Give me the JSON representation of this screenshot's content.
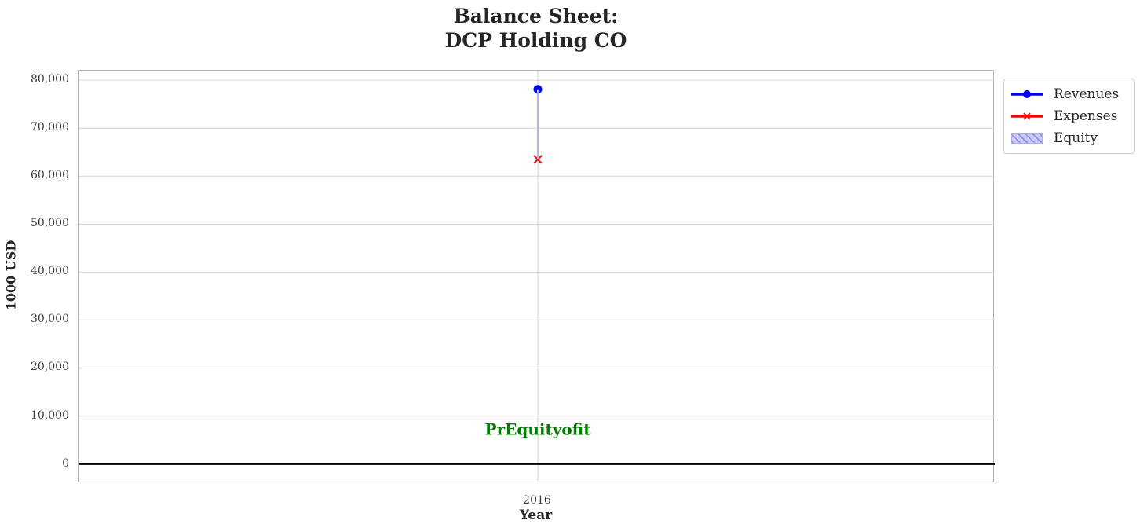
{
  "title": {
    "line1": "Balance Sheet:",
    "line2": "DCP Holding CO"
  },
  "axes": {
    "xlabel": "Year",
    "ylabel": "1000 USD",
    "xtick_labels": [
      "2016"
    ],
    "ytick_labels": [
      "0",
      "10,000",
      "20,000",
      "30,000",
      "40,000",
      "50,000",
      "60,000",
      "70,000",
      "80,000"
    ]
  },
  "legend": {
    "items": [
      {
        "label": "Revenues",
        "swatch": "line",
        "marker": "circle",
        "color": "#0000ff"
      },
      {
        "label": "Expenses",
        "swatch": "line",
        "marker": "x",
        "color": "#ff0000"
      },
      {
        "label": "Equity",
        "swatch": "patch",
        "color": "#ccccff",
        "hatch_color": "#8f8fe8",
        "edge_color": "#b0b0e8"
      }
    ]
  },
  "annotation": {
    "text": "PrEquityofit",
    "color": "#008000"
  },
  "colors": {
    "grid": "#dcdcdc",
    "spine": "#b2b2b2",
    "zero_line": "#000000",
    "revenues": "#0000ff",
    "expenses": "#ff0000",
    "equity_fill": "#b3b3e0",
    "annotation": "#008000",
    "text": "#262626"
  },
  "chart_data": {
    "type": "line",
    "title": "Balance Sheet:\nDCP Holding CO",
    "xlabel": "Year",
    "ylabel": "1000 USD",
    "x": [
      2016
    ],
    "series": [
      {
        "name": "Revenues",
        "type": "line",
        "marker": "circle",
        "color": "#0000ff",
        "values": [
          78100
        ]
      },
      {
        "name": "Expenses",
        "type": "line",
        "marker": "x",
        "color": "#ff0000",
        "values": [
          63500
        ]
      },
      {
        "name": "Equity",
        "type": "bar",
        "hatch": "//",
        "color": "#ccccff",
        "values": [
          14600
        ],
        "bar_base": 63500
      }
    ],
    "yticks": [
      0,
      10000,
      20000,
      30000,
      40000,
      50000,
      60000,
      70000,
      80000
    ],
    "ylim": [
      -4000,
      82000
    ],
    "grid": true,
    "zero_line": true,
    "legend_position": "outside upper right",
    "annotation": {
      "text": "PrEquityofit",
      "x": 2016,
      "y": 7200
    }
  }
}
